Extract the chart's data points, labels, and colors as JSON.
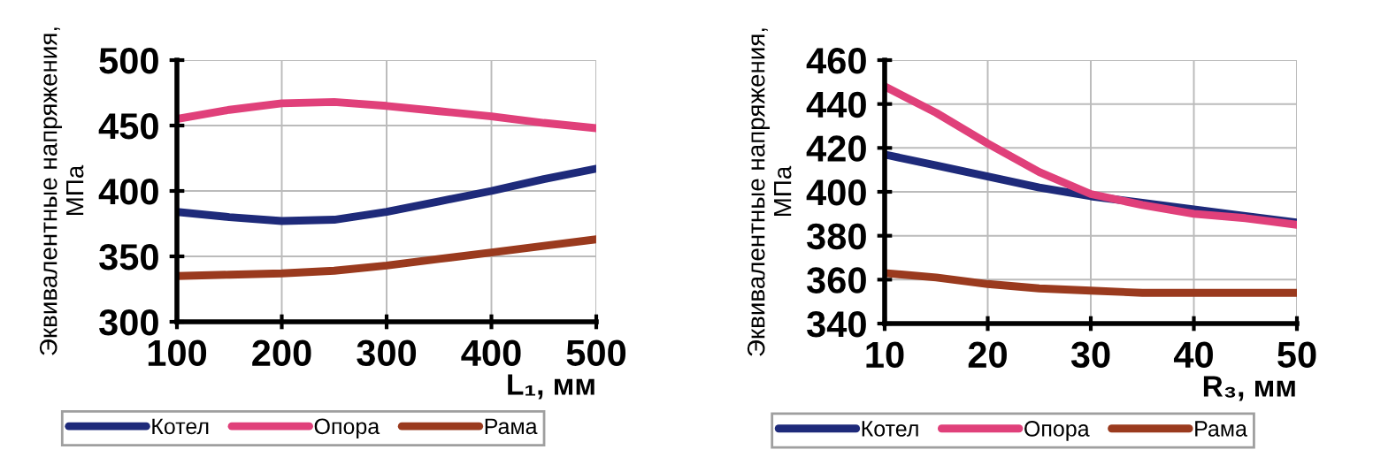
{
  "chart_data": [
    {
      "type": "line",
      "ylabel": "Эквивалентные напряжения,\nМПа",
      "xlabel": "L₁, мм",
      "x": [
        100,
        150,
        200,
        250,
        300,
        350,
        400,
        450,
        500
      ],
      "series": [
        {
          "name": "Котел",
          "color": "#1e2a7a",
          "values": [
            384,
            380,
            377,
            378,
            384,
            392,
            400,
            409,
            417
          ]
        },
        {
          "name": "Опора",
          "color": "#e0407a",
          "values": [
            455,
            462,
            467,
            468,
            465,
            461,
            457,
            452,
            448
          ]
        },
        {
          "name": "Рама",
          "color": "#9a3a1e",
          "values": [
            335,
            336,
            337,
            339,
            343,
            348,
            353,
            358,
            363
          ]
        }
      ],
      "xlim": [
        100,
        500
      ],
      "xticks": [
        100,
        200,
        300,
        400,
        500
      ],
      "ylim": [
        300,
        500
      ],
      "yticks": [
        300,
        350,
        400,
        450,
        500
      ],
      "grid": true,
      "legend": "bottom",
      "marker": "none",
      "line_style": "solid"
    },
    {
      "type": "line",
      "ylabel": "Эквивалентные напряжения,\nМПа",
      "xlabel": "R₃, мм",
      "x": [
        10,
        15,
        20,
        25,
        30,
        35,
        40,
        45,
        50
      ],
      "series": [
        {
          "name": "Котел",
          "color": "#1e2a7a",
          "values": [
            417,
            412,
            407,
            402,
            398,
            395,
            392,
            389,
            386
          ]
        },
        {
          "name": "Опора",
          "color": "#e0407a",
          "values": [
            448,
            436,
            422,
            409,
            399,
            394,
            390,
            388,
            385
          ]
        },
        {
          "name": "Рама",
          "color": "#9a3a1e",
          "values": [
            363,
            361,
            358,
            356,
            355,
            354,
            354,
            354,
            354
          ]
        }
      ],
      "xlim": [
        10,
        50
      ],
      "xticks": [
        10,
        20,
        30,
        40,
        50
      ],
      "ylim": [
        340,
        460
      ],
      "yticks": [
        340,
        360,
        380,
        400,
        420,
        440,
        460
      ],
      "grid": true,
      "legend": "bottom",
      "marker": "none",
      "line_style": "solid"
    }
  ]
}
